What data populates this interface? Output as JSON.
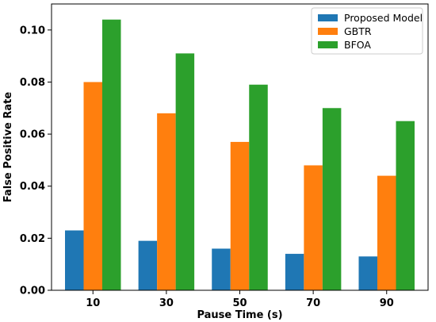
{
  "chart_data": {
    "type": "bar",
    "categories": [
      "10",
      "30",
      "50",
      "70",
      "90"
    ],
    "series": [
      {
        "name": "Proposed Model",
        "values": [
          0.023,
          0.019,
          0.016,
          0.014,
          0.013
        ],
        "color": "#1f77b4"
      },
      {
        "name": "GBTR",
        "values": [
          0.08,
          0.068,
          0.057,
          0.048,
          0.044
        ],
        "color": "#ff7f0e"
      },
      {
        "name": "BFOA",
        "values": [
          0.104,
          0.091,
          0.079,
          0.07,
          0.065
        ],
        "color": "#2ca02c"
      }
    ],
    "title": "",
    "xlabel": "Pause Time (s)",
    "ylabel": "False Positive Rate",
    "ylim": [
      0,
      0.11
    ],
    "yticks": [
      "0.00",
      "0.02",
      "0.04",
      "0.06",
      "0.08",
      "0.10"
    ],
    "ytick_values": [
      0,
      0.02,
      0.04,
      0.06,
      0.08,
      0.1
    ],
    "grid": false,
    "legend_position": "top-right"
  }
}
